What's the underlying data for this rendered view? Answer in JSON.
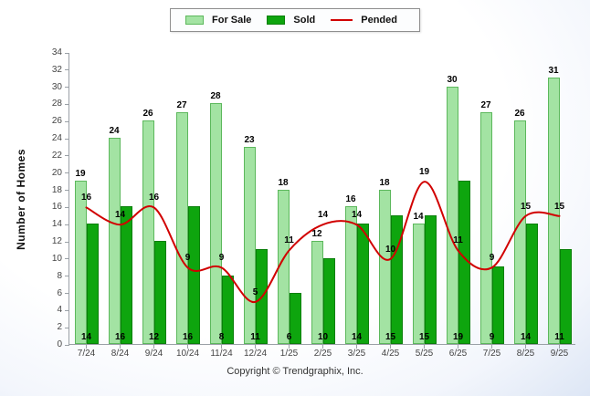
{
  "legend": {
    "for_sale": "For Sale",
    "sold": "Sold",
    "pended": "Pended"
  },
  "y_axis_title": "Number of Homes",
  "footer": "Copyright © Trendgraphix, Inc.",
  "colors": {
    "for_sale": "#A3E3A3",
    "for_sale_border": "#5CB85C",
    "sold": "#0EA50E",
    "sold_border": "#0B7F0B",
    "pended": "#D10000"
  },
  "chart_data": {
    "type": "bar",
    "categories": [
      "7/24",
      "8/24",
      "9/24",
      "10/24",
      "11/24",
      "12/24",
      "1/25",
      "2/25",
      "3/25",
      "4/25",
      "5/25",
      "6/25",
      "7/25",
      "8/25",
      "9/25"
    ],
    "series": [
      {
        "name": "For Sale",
        "type": "bar",
        "values": [
          19,
          24,
          26,
          27,
          28,
          23,
          18,
          12,
          16,
          18,
          14,
          30,
          27,
          26,
          31
        ]
      },
      {
        "name": "Sold",
        "type": "bar",
        "values": [
          14,
          16,
          12,
          16,
          8,
          11,
          6,
          10,
          14,
          15,
          15,
          19,
          9,
          14,
          11
        ]
      },
      {
        "name": "Pended",
        "type": "line",
        "values": [
          16,
          14,
          16,
          9,
          9,
          5,
          11,
          14,
          14,
          10,
          19,
          11,
          9,
          15,
          15
        ]
      }
    ],
    "title": "",
    "xlabel": "",
    "ylabel": "Number of Homes",
    "ylim": [
      0,
      34
    ],
    "ytick_step": 2,
    "grid": false,
    "legend_position": "top"
  }
}
